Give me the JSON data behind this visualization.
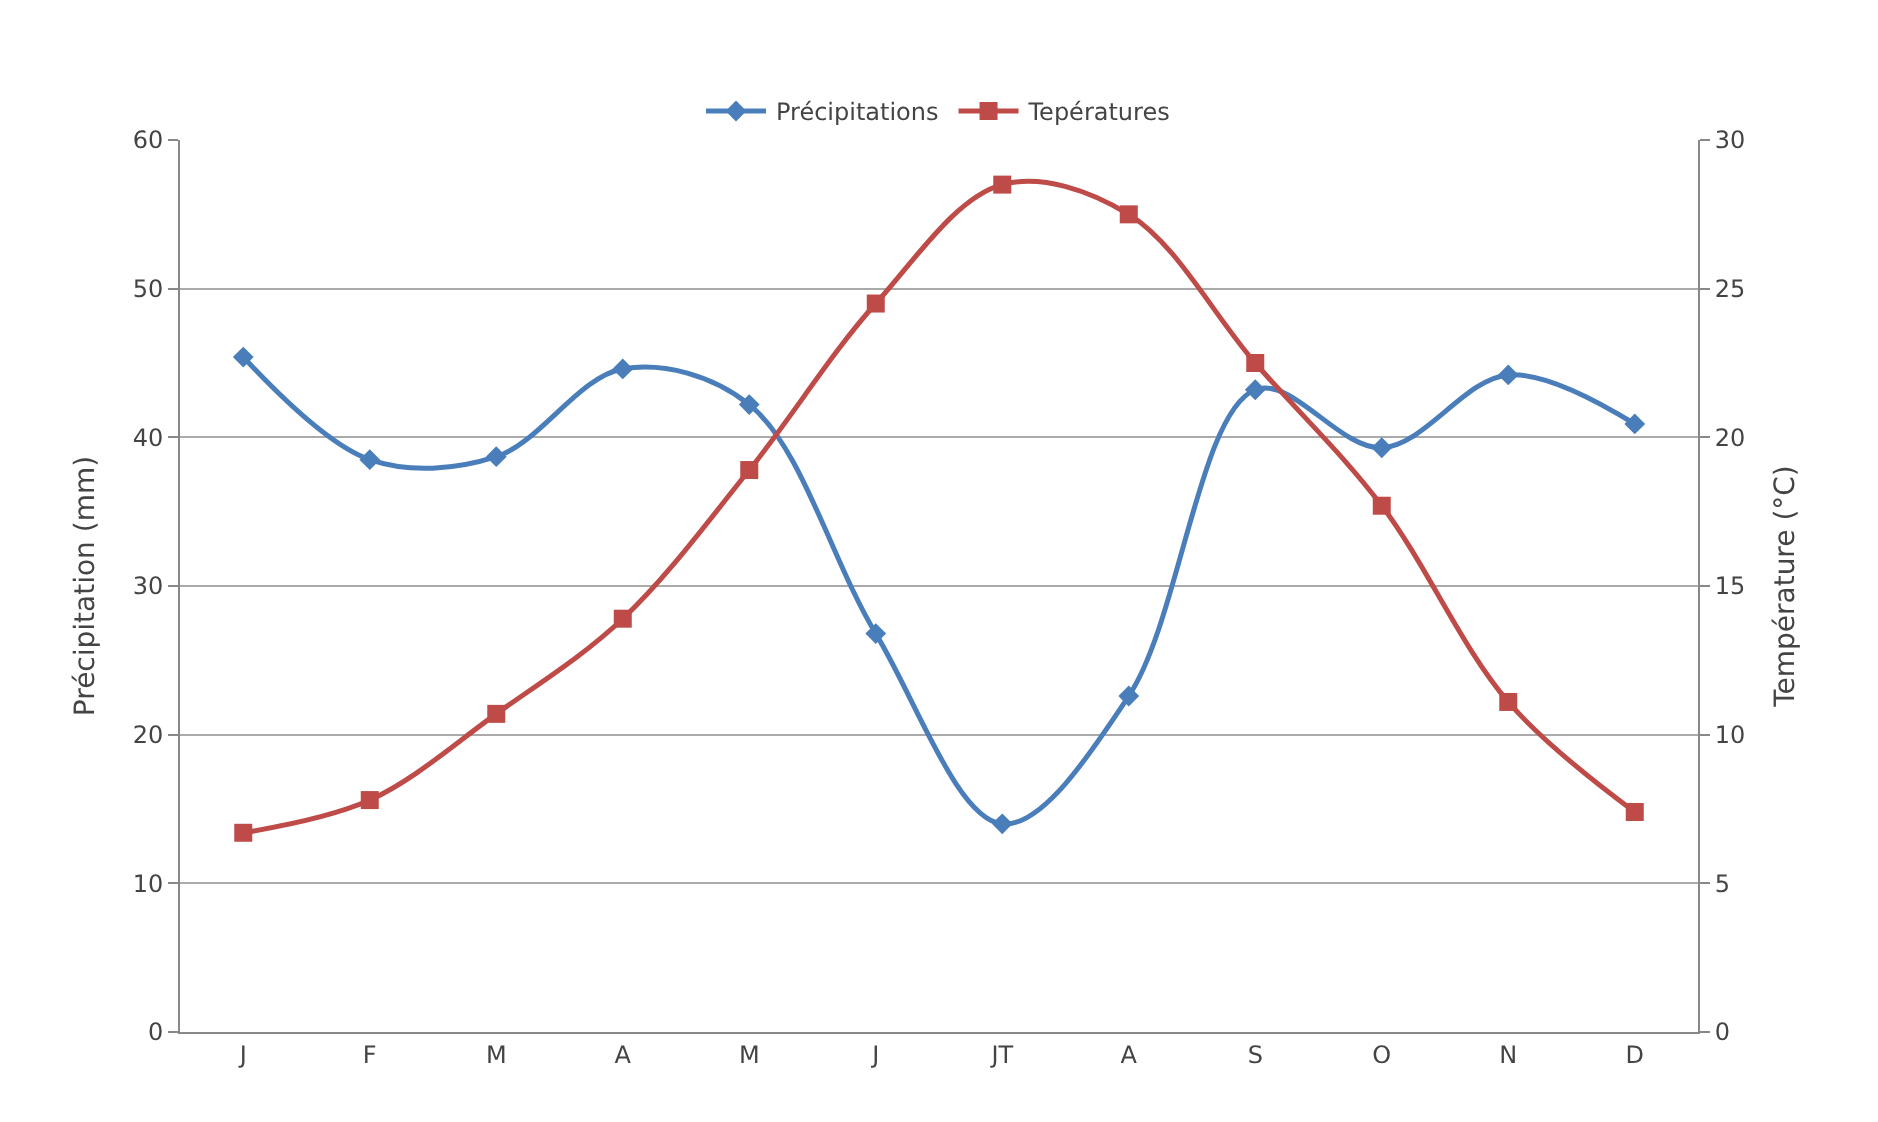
{
  "chart_data": {
    "type": "line",
    "categories": [
      "J",
      "F",
      "M",
      "A",
      "M",
      "J",
      "JT",
      "A",
      "S",
      "O",
      "N",
      "D"
    ],
    "series": [
      {
        "name": "Précipitations",
        "color": "#4a7ebb",
        "marker": "diamond",
        "values": [
          45.4,
          38.5,
          38.7,
          44.6,
          42.2,
          26.8,
          14.0,
          22.6,
          43.2,
          39.3,
          44.2,
          40.9
        ]
      },
      {
        "name": "Tepératures",
        "color": "#be4b48",
        "marker": "square",
        "axis": "y2",
        "values": [
          6.7,
          7.8,
          10.7,
          13.9,
          18.9,
          24.5,
          28.5,
          27.5,
          22.5,
          17.7,
          11.1,
          7.4
        ]
      }
    ],
    "ylabel": "Précipitation (mm)",
    "y2label": "Température (°C)",
    "ylim": [
      0,
      60
    ],
    "yticks": [
      0,
      10,
      20,
      30,
      40,
      50,
      60
    ],
    "y2lim": [
      0,
      30
    ],
    "y2ticks": [
      0,
      5,
      10,
      15,
      20,
      25,
      30
    ],
    "grid": "y",
    "legend": "top",
    "line_style": "solid"
  }
}
